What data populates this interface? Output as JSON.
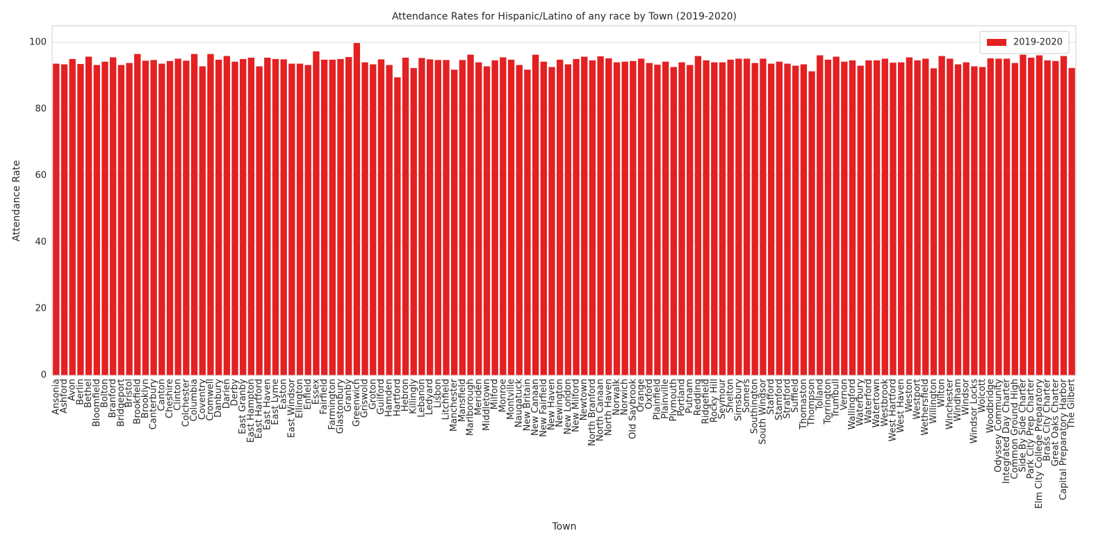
{
  "chart_data": {
    "type": "bar",
    "title": "Attendance Rates for Hispanic/Latino of any race by Town (2019-2020)",
    "x_label": "Town",
    "y_label": "Attendance Rate",
    "categories": [
      "Ansonia",
      "Ashford",
      "Avon",
      "Berlin",
      "Bethel",
      "Bloomfield",
      "Bolton",
      "Branford",
      "Bridgeport",
      "Bristol",
      "Brookfield",
      "Brooklyn",
      "Canterbury",
      "Canton",
      "Cheshire",
      "Clinton",
      "Colchester",
      "Columbia",
      "Coventry",
      "Cromwell",
      "Danbury",
      "Darien",
      "Derby",
      "East Granby",
      "East Hampton",
      "East Hartford",
      "East Haven",
      "East Lyme",
      "Easton",
      "East Windsor",
      "Ellington",
      "Enfield",
      "Essex",
      "Fairfield",
      "Farmington",
      "Glastonbury",
      "Granby",
      "Greenwich",
      "Griswold",
      "Groton",
      "Guilford",
      "Hamden",
      "Hartford",
      "Hebron",
      "Killingly",
      "Lebanon",
      "Ledyard",
      "Lisbon",
      "Litchfield",
      "Manchester",
      "Mansfield",
      "Marlborough",
      "Meriden",
      "Middletown",
      "Milford",
      "Monroe",
      "Montville",
      "Naugatuck",
      "New Britain",
      "New Canaan",
      "New Fairfield",
      "New Haven",
      "Newington",
      "New London",
      "New Milford",
      "Newtown",
      "North Branford",
      "North Canaan",
      "North Haven",
      "Norwalk",
      "Norwich",
      "Old Saybrook",
      "Orange",
      "Oxford",
      "Plainfield",
      "Plainville",
      "Plymouth",
      "Portland",
      "Putnam",
      "Redding",
      "Ridgefield",
      "Rocky Hill",
      "Seymour",
      "Shelton",
      "Simsbury",
      "Somers",
      "Southington",
      "South Windsor",
      "Stafford",
      "Stamford",
      "Stratford",
      "Suffield",
      "Thomaston",
      "Thompson",
      "Tolland",
      "Torrington",
      "Trumbull",
      "Vernon",
      "Wallingford",
      "Waterbury",
      "Waterford",
      "Watertown",
      "Westbrook",
      "West Hartford",
      "West Haven",
      "Weston",
      "Westport",
      "Wethersfield",
      "Willington",
      "Wilton",
      "Winchester",
      "Windham",
      "Windsor",
      "Windsor Locks",
      "Wolcott",
      "Woodbridge",
      "Odyssey Community",
      "Integrated Day Charter",
      "Common Ground High",
      "Side By Side Charter",
      "Park City Prep Charter",
      "Elm City College Preparatory",
      "Brass City Charter",
      "Great Oaks Charter",
      "Capital Preparatory Harbor",
      "The Gilbert"
    ],
    "series": [
      {
        "name": "2019-2020",
        "color": "#e32022",
        "values": [
          93.6,
          93.4,
          95.0,
          93.5,
          95.7,
          93.2,
          94.2,
          95.5,
          93.2,
          93.8,
          96.5,
          94.5,
          94.7,
          93.6,
          94.4,
          95.1,
          94.5,
          96.5,
          92.8,
          96.5,
          94.8,
          95.9,
          94.2,
          95.0,
          95.4,
          92.8,
          95.4,
          95.0,
          94.9,
          93.6,
          93.6,
          93.2,
          97.3,
          94.8,
          94.8,
          95.0,
          95.6,
          99.8,
          94.0,
          93.4,
          94.9,
          93.2,
          89.5,
          95.4,
          92.3,
          95.3,
          94.9,
          94.7,
          94.7,
          91.8,
          94.7,
          96.3,
          94.0,
          92.8,
          94.6,
          95.5,
          94.8,
          93.2,
          91.8,
          96.3,
          94.2,
          92.6,
          94.8,
          93.4,
          95.0,
          95.7,
          94.6,
          95.8,
          95.2,
          94.0,
          94.2,
          94.4,
          95.1,
          93.8,
          93.3,
          94.2,
          92.6,
          94.0,
          93.2,
          95.9,
          94.6,
          94.0,
          94.0,
          94.8,
          95.1,
          95.1,
          93.8,
          95.1,
          93.6,
          94.2,
          93.6,
          93.0,
          93.4,
          91.3,
          96.1,
          94.8,
          95.7,
          94.2,
          94.6,
          93.0,
          94.6,
          94.6,
          95.1,
          93.9,
          94.0,
          95.5,
          94.6,
          95.1,
          92.2,
          95.9,
          95.1,
          93.4,
          94.0,
          92.8,
          92.6,
          95.2,
          95.1,
          95.1,
          93.8,
          96.3,
          95.4,
          96.1,
          94.6,
          94.4,
          95.9,
          92.3
        ]
      }
    ],
    "ylim": [
      0,
      105
    ],
    "yticks": [
      0,
      20,
      40,
      60,
      80,
      100
    ],
    "grid": true,
    "legend": "upper right"
  }
}
